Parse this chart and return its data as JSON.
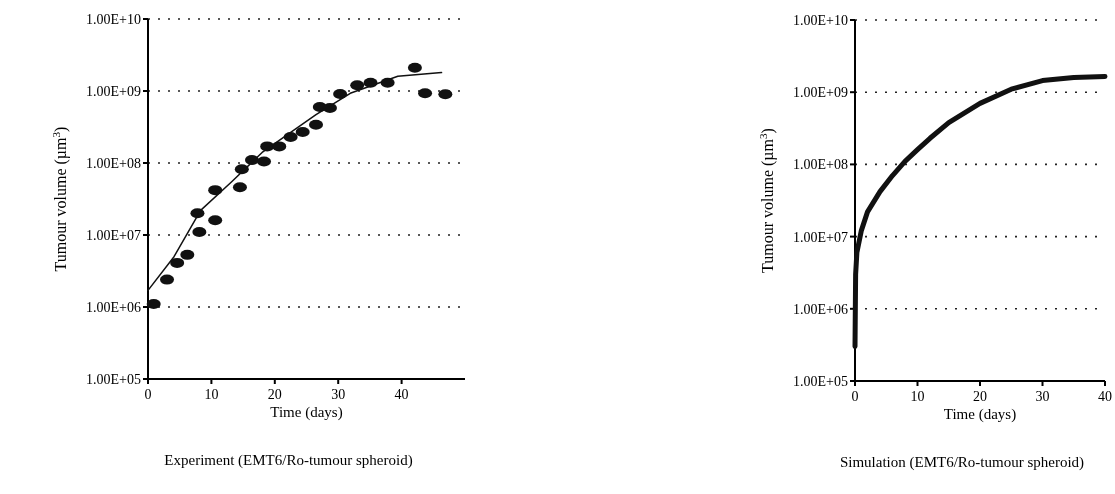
{
  "chart_data": [
    {
      "type": "scatter",
      "xlabel": "Time (days)",
      "ylabel": "Tumour volume (µm$^{3}$)",
      "log": "y",
      "grid": "y",
      "marker": "circle",
      "xlim": [
        0,
        50
      ],
      "xticks": [
        0,
        10,
        20,
        30,
        40
      ],
      "ylim": [
        100000,
        10000000000
      ],
      "yticks": [
        {
          "value": 100000,
          "label": "1.00E+05"
        },
        {
          "value": 1000000,
          "label": "1.00E+06"
        },
        {
          "value": 10000000,
          "label": "1.00E+07"
        },
        {
          "value": 100000000,
          "label": "1.00E+08"
        },
        {
          "value": 1000000000,
          "label": "1.00E+09"
        },
        {
          "value": 10000000000,
          "label": "1.00E+10"
        }
      ],
      "series": [
        {
          "type": "scatter",
          "color": "#111111",
          "x": [
            0.9,
            3.0,
            4.6,
            6.2,
            8.1,
            7.8,
            10.6,
            10.6,
            14.5,
            14.8,
            16.4,
            18.3,
            18.8,
            20.7,
            22.5,
            24.4,
            26.5,
            27.1,
            28.7,
            30.3,
            33.0,
            35.1,
            37.8,
            42.1,
            43.7,
            46.9
          ],
          "values": [
            1100000,
            2400000,
            4100000,
            5300000,
            11000000,
            20000000,
            16000000,
            42000000,
            46000000,
            82000000,
            110000000,
            105000000,
            170000000,
            170000000,
            230000000,
            270000000,
            340000000,
            600000000,
            580000000,
            910000000,
            1200000000,
            1300000000,
            1300000000,
            2100000000,
            930000000,
            900000000
          ]
        },
        {
          "type": "line",
          "color": "#111111",
          "marker": "none",
          "x": [
            0,
            4.1,
            8.3,
            13.2,
            18,
            26.5,
            31.9,
            39.4,
            46.3
          ],
          "values": [
            1700000,
            5000000,
            22000000,
            55000000,
            140000000,
            470000000,
            930000000,
            1600000000,
            1800000000
          ]
        }
      ],
      "annotations": [
        "Experiment (EMT6/Ro-tumour spheroid)"
      ]
    },
    {
      "type": "line",
      "xlabel": "Time (days)",
      "ylabel": "Tumour volume (µm$^{3}$)",
      "log": "y",
      "grid": "y",
      "marker": "none",
      "xlim": [
        0,
        40
      ],
      "xticks": [
        0,
        10,
        20,
        30,
        40
      ],
      "ylim": [
        100000,
        10000000000
      ],
      "yticks": [
        {
          "value": 100000,
          "label": "1.00E+05"
        },
        {
          "value": 1000000,
          "label": "1.00E+06"
        },
        {
          "value": 10000000,
          "label": "1.00E+07"
        },
        {
          "value": 100000000,
          "label": "1.00E+08"
        },
        {
          "value": 1000000000,
          "label": "1.00E+09"
        },
        {
          "value": 10000000000,
          "label": "1.00E+10"
        }
      ],
      "series": [
        {
          "color": "#111111",
          "x": [
            0,
            0.1,
            0.3,
            1,
            2,
            4,
            6,
            8,
            10,
            12,
            15,
            20,
            25,
            30,
            35,
            40
          ],
          "values": [
            300000,
            3000000,
            6000000,
            12000000,
            22000000,
            42000000,
            70000000,
            110000000,
            160000000,
            230000000,
            380000000,
            700000000,
            1100000000,
            1450000000,
            1600000000,
            1650000000
          ]
        }
      ],
      "annotations": [
        "Simulation (EMT6/Ro-tumour spheroid)"
      ]
    }
  ]
}
